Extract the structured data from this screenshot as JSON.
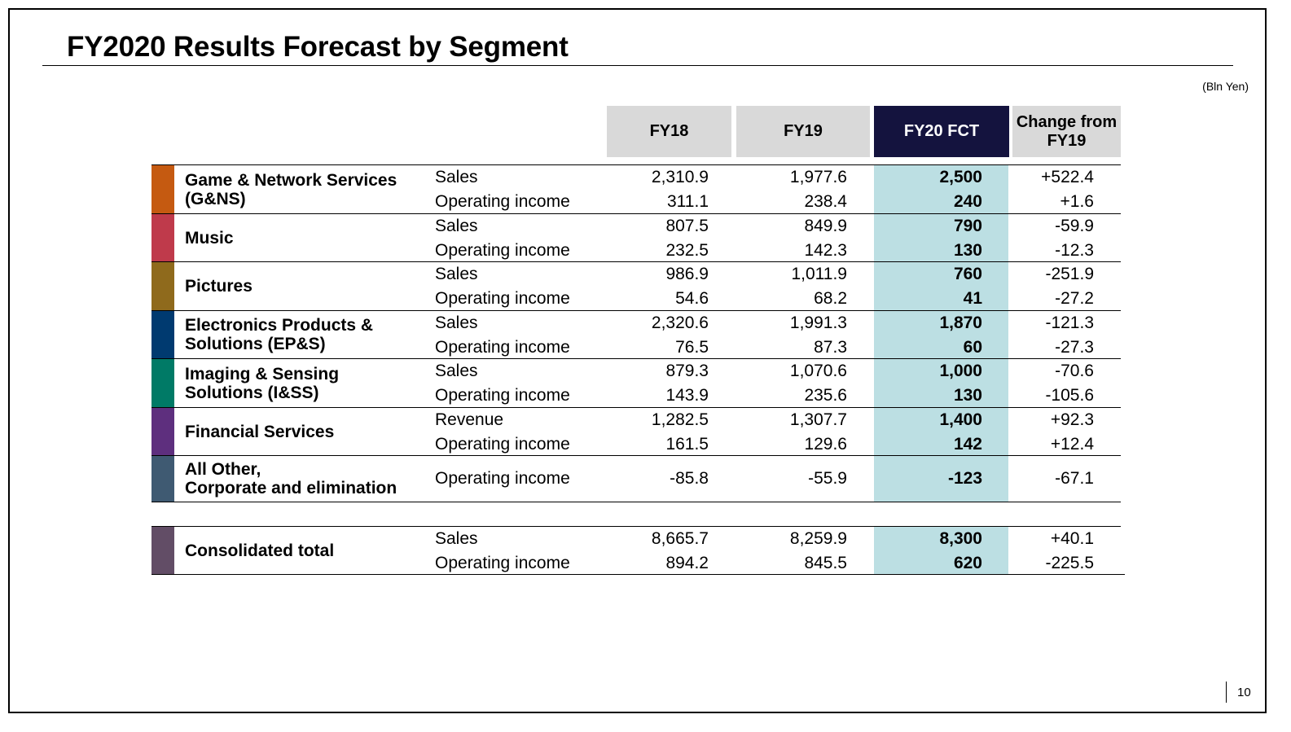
{
  "title": "FY2020 Results Forecast by Segment",
  "unit": "(Bln Yen)",
  "columns": [
    "FY18",
    "FY19",
    "FY20 FCT",
    "Change from FY19"
  ],
  "segments": [
    {
      "name": "Game & Network Services\n(G&NS)",
      "color": "#c55a11",
      "rows": [
        {
          "metric": "Sales",
          "fy18": "2,310.9",
          "fy19": "1,977.6",
          "fy20": "2,500",
          "change": "+522.4"
        },
        {
          "metric": "Operating income",
          "fy18": "311.1",
          "fy19": "238.4",
          "fy20": "240",
          "change": "+1.6"
        }
      ]
    },
    {
      "name": "Music",
      "color": "#bf3a4b",
      "rows": [
        {
          "metric": "Sales",
          "fy18": "807.5",
          "fy19": "849.9",
          "fy20": "790",
          "change": "-59.9"
        },
        {
          "metric": "Operating income",
          "fy18": "232.5",
          "fy19": "142.3",
          "fy20": "130",
          "change": "-12.3"
        }
      ]
    },
    {
      "name": "Pictures",
      "color": "#8f6a1c",
      "rows": [
        {
          "metric": "Sales",
          "fy18": "986.9",
          "fy19": "1,011.9",
          "fy20": "760",
          "change": "-251.9"
        },
        {
          "metric": "Operating income",
          "fy18": "54.6",
          "fy19": "68.2",
          "fy20": "41",
          "change": "-27.2"
        }
      ]
    },
    {
      "name": "Electronics Products &\nSolutions (EP&S)",
      "color": "#003a70",
      "rows": [
        {
          "metric": "Sales",
          "fy18": "2,320.6",
          "fy19": "1,991.3",
          "fy20": "1,870",
          "change": "-121.3"
        },
        {
          "metric": "Operating income",
          "fy18": "76.5",
          "fy19": "87.3",
          "fy20": "60",
          "change": "-27.3"
        }
      ]
    },
    {
      "name": "Imaging & Sensing\nSolutions (I&SS)",
      "color": "#007a66",
      "rows": [
        {
          "metric": "Sales",
          "fy18": "879.3",
          "fy19": "1,070.6",
          "fy20": "1,000",
          "change": "-70.6"
        },
        {
          "metric": "Operating income",
          "fy18": "143.9",
          "fy19": "235.6",
          "fy20": "130",
          "change": "-105.6"
        }
      ]
    },
    {
      "name": "Financial Services",
      "color": "#5e2f7e",
      "rows": [
        {
          "metric": "Revenue",
          "fy18": "1,282.5",
          "fy19": "1,307.7",
          "fy20": "1,400",
          "change": "+92.3"
        },
        {
          "metric": "Operating income",
          "fy18": "161.5",
          "fy19": "129.6",
          "fy20": "142",
          "change": "+12.4"
        }
      ]
    },
    {
      "name": "All Other,\nCorporate and elimination",
      "color": "#3f5a72",
      "rows": [
        {
          "metric": "Operating income",
          "fy18": "-85.8",
          "fy19": "-55.9",
          "fy20": "-123",
          "change": "-67.1"
        }
      ]
    }
  ],
  "total": {
    "name": "Consolidated total",
    "color": "#624d66",
    "rows": [
      {
        "metric": "Sales",
        "fy18": "8,665.7",
        "fy19": "8,259.9",
        "fy20": "8,300",
        "change": "+40.1"
      },
      {
        "metric": "Operating income",
        "fy18": "894.2",
        "fy19": "845.5",
        "fy20": "620",
        "change": "-225.5"
      }
    ]
  },
  "page_number": "10"
}
